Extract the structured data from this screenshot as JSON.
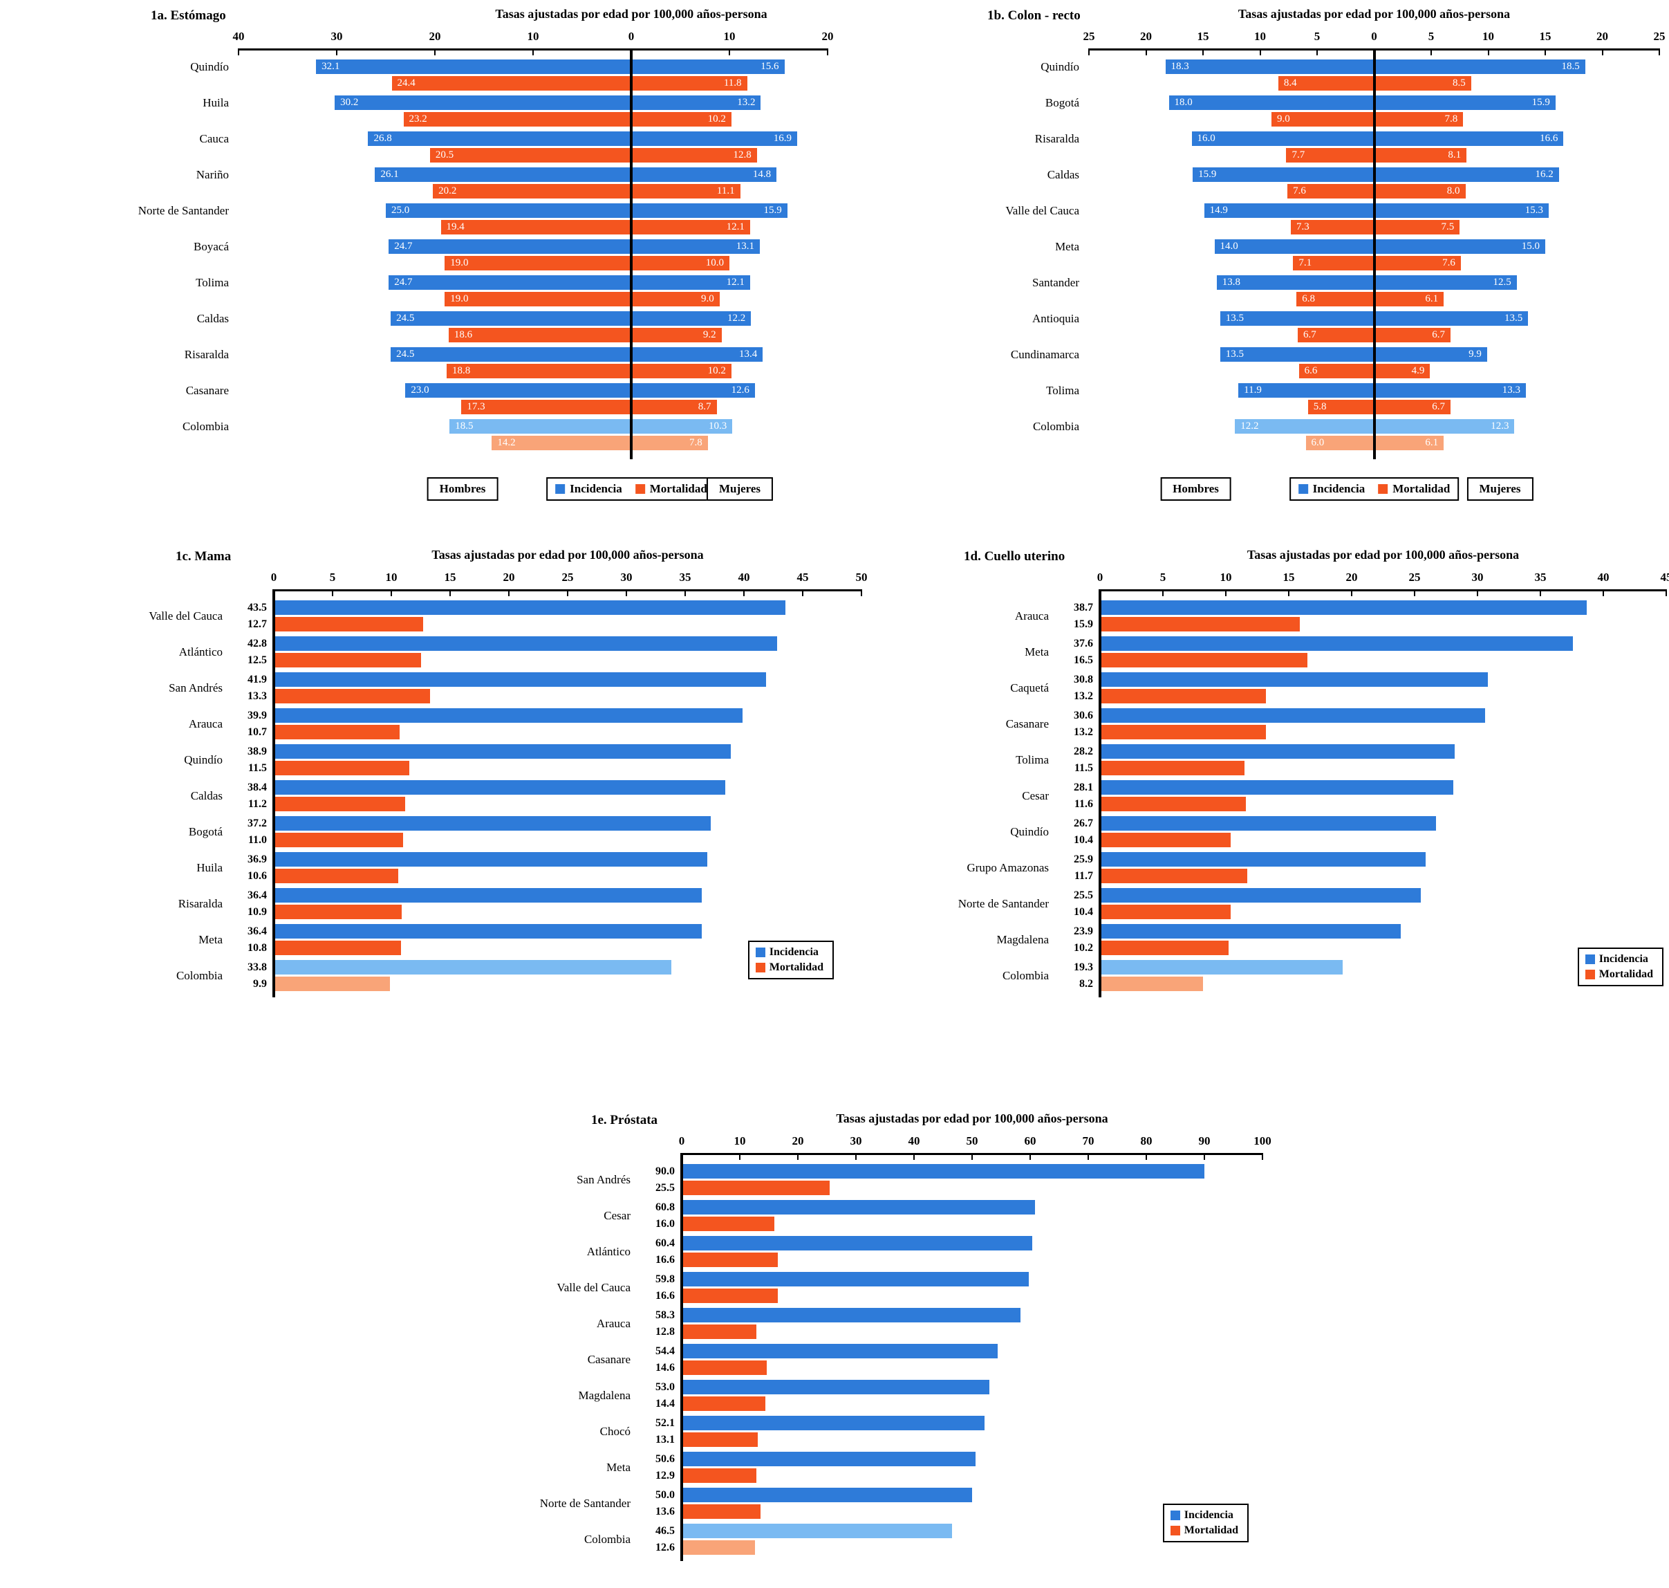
{
  "colors": {
    "incidence": "#2E7BD9",
    "mortality": "#F4551F",
    "incidence_light": "#7ABAF2",
    "mortality_light": "#F9A478",
    "axis": "#000000",
    "background": "#FFFFFF"
  },
  "legend": {
    "hombres": "Hombres",
    "mujeres": "Mujeres",
    "incidencia": "Incidencia",
    "mortalidad": "Mortalidad"
  },
  "chart_data": [
    {
      "id": "estomago",
      "type": "bar",
      "subtype": "bidirectional-pyramid",
      "title": "1a. Estómago",
      "axis_label": "Tasas ajustadas por edad por 100,000 años-persona",
      "left_group": "Hombres",
      "right_group": "Mujeres",
      "left_max": 40,
      "right_max": 20,
      "left_ticks": [
        40,
        30,
        20,
        10,
        0
      ],
      "right_ticks": [
        10,
        20
      ],
      "categories": [
        "Quindío",
        "Huila",
        "Cauca",
        "Nariño",
        "Norte de Santander",
        "Boyacá",
        "Tolima",
        "Caldas",
        "Risaralda",
        "Casanare",
        "Colombia"
      ],
      "series": [
        {
          "name": "Hombres Incidencia",
          "values": [
            32.1,
            30.2,
            26.8,
            26.1,
            25.0,
            24.7,
            24.7,
            24.5,
            24.5,
            23.0,
            18.5
          ]
        },
        {
          "name": "Hombres Mortalidad",
          "values": [
            24.4,
            23.2,
            20.5,
            20.2,
            19.4,
            19.0,
            19.0,
            18.6,
            18.8,
            17.3,
            14.2
          ]
        },
        {
          "name": "Mujeres Incidencia",
          "values": [
            15.6,
            13.2,
            16.9,
            14.8,
            15.9,
            13.1,
            12.1,
            12.2,
            13.4,
            12.6,
            10.3
          ]
        },
        {
          "name": "Mujeres Mortalidad",
          "values": [
            11.8,
            10.2,
            12.8,
            11.1,
            12.1,
            10.0,
            9.0,
            9.2,
            10.2,
            8.7,
            7.8
          ]
        }
      ],
      "highlight_category": "Colombia"
    },
    {
      "id": "colon",
      "type": "bar",
      "subtype": "bidirectional-pyramid",
      "title": "1b. Colon - recto",
      "axis_label": "Tasas ajustadas por edad por 100,000 años-persona",
      "left_group": "Hombres",
      "right_group": "Mujeres",
      "left_max": 25,
      "right_max": 25,
      "left_ticks": [
        25,
        20,
        15,
        10,
        5,
        0
      ],
      "right_ticks": [
        5,
        10,
        15,
        20,
        25
      ],
      "categories": [
        "Quindío",
        "Bogotá",
        "Risaralda",
        "Caldas",
        "Valle del Cauca",
        "Meta",
        "Santander",
        "Antioquia",
        "Cundinamarca",
        "Tolima",
        "Colombia"
      ],
      "series": [
        {
          "name": "Hombres Incidencia",
          "values": [
            18.3,
            18.0,
            16.0,
            15.9,
            14.9,
            14.0,
            13.8,
            13.5,
            13.5,
            11.9,
            12.2
          ]
        },
        {
          "name": "Hombres Mortalidad",
          "values": [
            8.4,
            9.0,
            7.7,
            7.6,
            7.3,
            7.1,
            6.8,
            6.7,
            6.6,
            5.8,
            6.0
          ]
        },
        {
          "name": "Mujeres Incidencia",
          "values": [
            18.5,
            15.9,
            16.6,
            16.2,
            15.3,
            15.0,
            12.5,
            13.5,
            9.9,
            13.3,
            12.3
          ]
        },
        {
          "name": "Mujeres Mortalidad",
          "values": [
            8.5,
            7.8,
            8.1,
            8.0,
            7.5,
            7.6,
            6.1,
            6.7,
            4.9,
            6.7,
            6.1
          ]
        }
      ],
      "highlight_category": "Colombia"
    },
    {
      "id": "mama",
      "type": "bar",
      "subtype": "horizontal-paired",
      "title": "1c. Mama",
      "axis_label": "Tasas ajustadas por edad por 100,000 años-persona",
      "xmax": 50,
      "ticks": [
        0,
        5,
        10,
        15,
        20,
        25,
        30,
        35,
        40,
        45,
        50
      ],
      "categories": [
        "Valle del Cauca",
        "Atlántico",
        "San Andrés",
        "Arauca",
        "Quindío",
        "Caldas",
        "Bogotá",
        "Huila",
        "Risaralda",
        "Meta",
        "Colombia"
      ],
      "series": [
        {
          "name": "Incidencia",
          "values": [
            43.5,
            42.8,
            41.9,
            39.9,
            38.9,
            38.4,
            37.2,
            36.9,
            36.4,
            36.4,
            33.8
          ]
        },
        {
          "name": "Mortalidad",
          "values": [
            12.7,
            12.5,
            13.3,
            10.7,
            11.5,
            11.2,
            11.0,
            10.6,
            10.9,
            10.8,
            9.9
          ]
        }
      ],
      "highlight_category": "Colombia"
    },
    {
      "id": "cuello",
      "type": "bar",
      "subtype": "horizontal-paired",
      "title": "1d. Cuello uterino",
      "axis_label": "Tasas ajustadas por edad por 100,000 años-persona",
      "xmax": 45,
      "ticks": [
        0,
        5,
        10,
        15,
        20,
        25,
        30,
        35,
        40,
        45
      ],
      "categories": [
        "Arauca",
        "Meta",
        "Caquetá",
        "Casanare",
        "Tolima",
        "Cesar",
        "Quindío",
        "Grupo Amazonas",
        "Norte de Santander",
        "Magdalena",
        "Colombia"
      ],
      "series": [
        {
          "name": "Incidencia",
          "values": [
            38.7,
            37.6,
            30.8,
            30.6,
            28.2,
            28.1,
            26.7,
            25.9,
            25.5,
            23.9,
            19.3
          ]
        },
        {
          "name": "Mortalidad",
          "values": [
            15.9,
            16.5,
            13.2,
            13.2,
            11.5,
            11.6,
            10.4,
            11.7,
            10.4,
            10.2,
            8.2
          ]
        }
      ],
      "highlight_category": "Colombia"
    },
    {
      "id": "prostata",
      "type": "bar",
      "subtype": "horizontal-paired",
      "title": "1e. Próstata",
      "axis_label": "Tasas ajustadas por edad por 100,000 años-persona",
      "xmax": 100,
      "ticks": [
        0,
        10,
        20,
        30,
        40,
        50,
        60,
        70,
        80,
        90,
        100
      ],
      "categories": [
        "San Andrés",
        "Cesar",
        "Atlántico",
        "Valle del Cauca",
        "Arauca",
        "Casanare",
        "Magdalena",
        "Chocó",
        "Meta",
        "Norte de Santander",
        "Colombia"
      ],
      "series": [
        {
          "name": "Incidencia",
          "values": [
            90.0,
            60.8,
            60.4,
            59.8,
            58.3,
            54.4,
            53.0,
            52.1,
            50.6,
            50.0,
            46.5
          ]
        },
        {
          "name": "Mortalidad",
          "values": [
            25.5,
            16.0,
            16.6,
            16.6,
            12.8,
            14.6,
            14.4,
            13.1,
            12.9,
            13.6,
            12.6
          ]
        }
      ],
      "highlight_category": "Colombia"
    }
  ]
}
